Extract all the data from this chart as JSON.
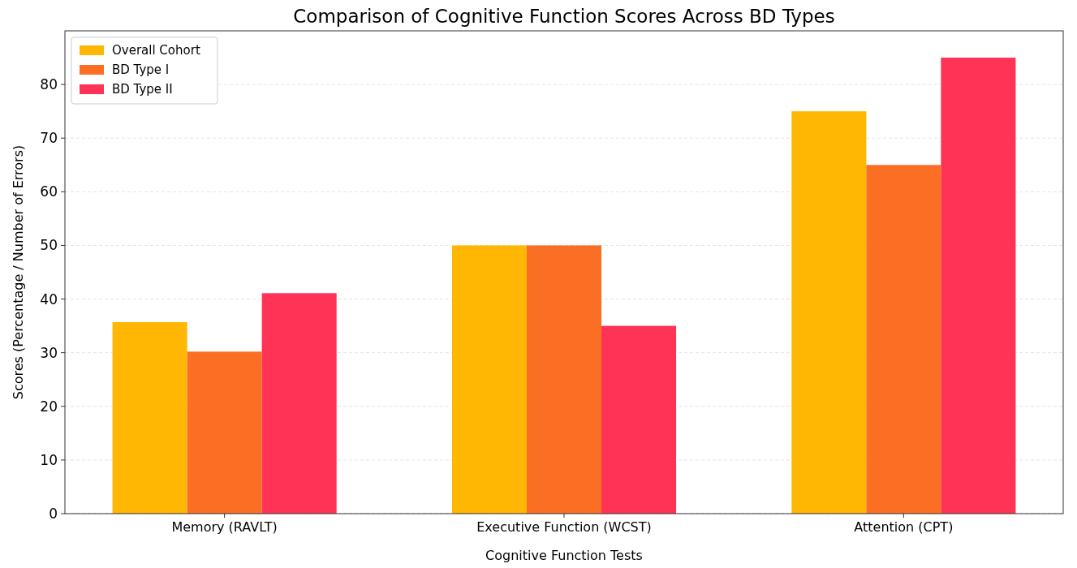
{
  "chart_data": {
    "type": "bar",
    "title": "Comparison of Cognitive Function Scores Across BD Types",
    "xlabel": "Cognitive Function Tests",
    "ylabel": "Scores (Percentage / Number of Errors)",
    "categories": [
      "Memory (RAVLT)",
      "Executive Function (WCST)",
      "Attention (CPT)"
    ],
    "series": [
      {
        "name": "Overall Cohort",
        "color": "#ffb703",
        "values": [
          35.7,
          50,
          75
        ]
      },
      {
        "name": "BD Type I",
        "color": "#fb6f24",
        "values": [
          30.2,
          50,
          65
        ]
      },
      {
        "name": "BD Type II",
        "color": "#ff3355",
        "values": [
          41.1,
          35,
          85
        ]
      }
    ],
    "ylim": [
      0,
      90
    ],
    "yticks": [
      0,
      10,
      20,
      30,
      40,
      50,
      60,
      70,
      80
    ],
    "grid": "y",
    "legend": "top left"
  }
}
